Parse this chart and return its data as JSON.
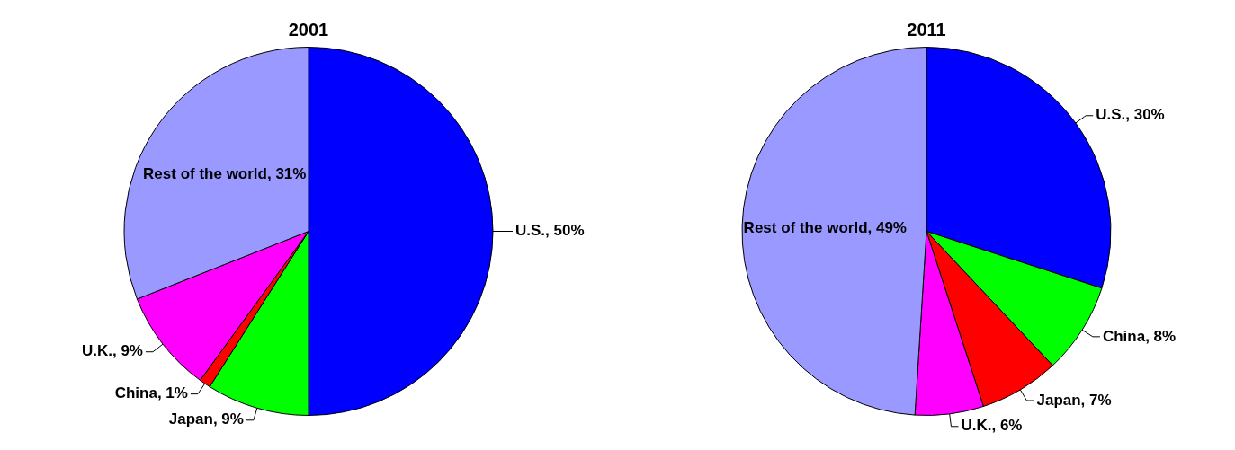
{
  "chart_data": [
    {
      "type": "pie",
      "title": "2001",
      "categories": [
        "U.S.",
        "Japan",
        "China",
        "U.K.",
        "Rest of the world"
      ],
      "values": [
        50,
        9,
        1,
        9,
        31
      ],
      "colors": [
        "#0000ff",
        "#00ff00",
        "#ff0000",
        "#ff00ff",
        "#9999ff"
      ],
      "value_labels": [
        "50%",
        "9%",
        "1%",
        "9%",
        "31%"
      ]
    },
    {
      "type": "pie",
      "title": "2011",
      "categories": [
        "U.S.",
        "China",
        "Japan",
        "U.K.",
        "Rest of the world"
      ],
      "values": [
        30,
        8,
        7,
        6,
        49
      ],
      "colors": [
        "#0000ff",
        "#00ff00",
        "#ff0000",
        "#ff00ff",
        "#9999ff"
      ],
      "value_labels": [
        "30%",
        "8%",
        "7%",
        "6%",
        "49%"
      ]
    }
  ]
}
